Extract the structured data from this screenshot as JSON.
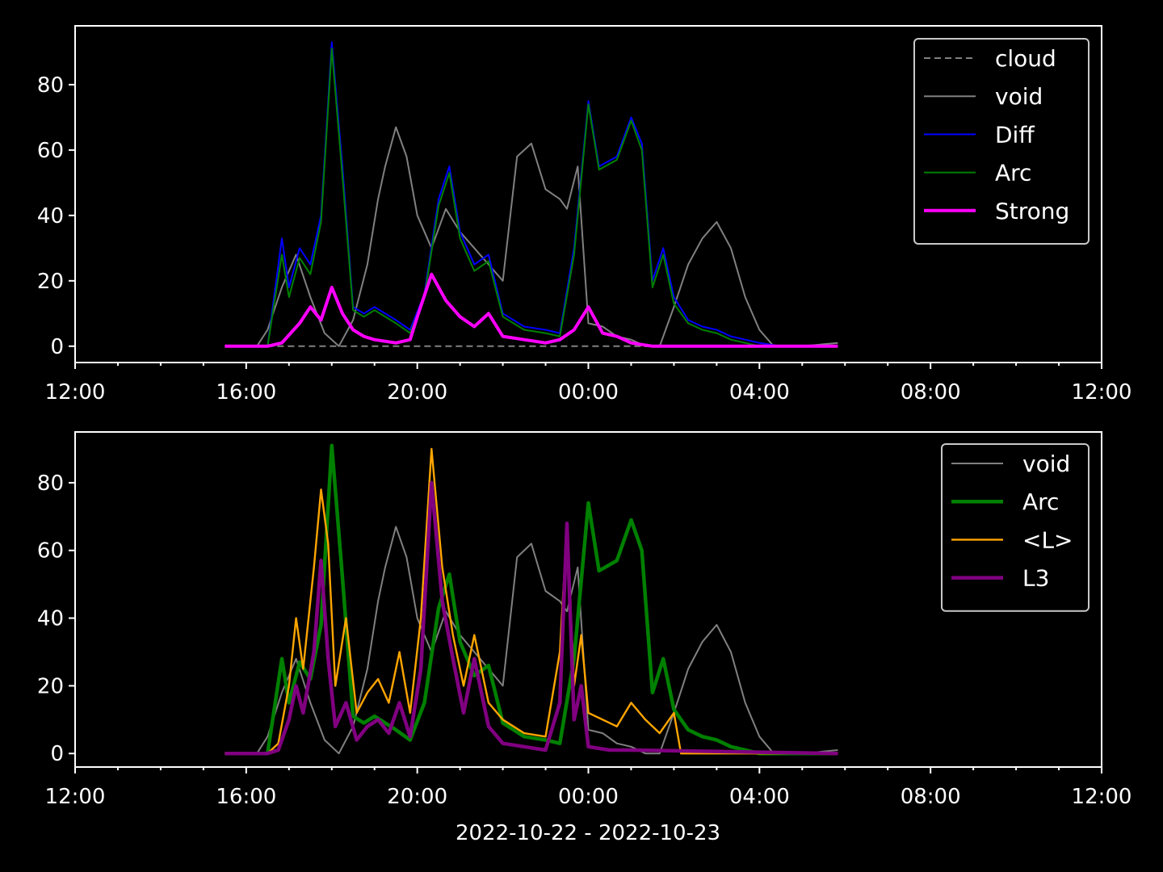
{
  "chart_data": [
    {
      "type": "line",
      "title": "",
      "xlabel": "",
      "ylabel": "",
      "xlim": [
        "2022-10-22 12:00",
        "2022-10-23 12:00"
      ],
      "ylim": [
        -5,
        98
      ],
      "xtick_labels": [
        "12:00",
        "16:00",
        "20:00",
        "00:00",
        "04:00",
        "08:00",
        "12:00"
      ],
      "ytick_labels": [
        "0",
        "20",
        "40",
        "60",
        "80"
      ],
      "grid": false,
      "legend_position": "top-right",
      "series": [
        {
          "name": "cloud",
          "color": "#808080",
          "style": "dashed",
          "x": [
            "2022-10-22 15:30",
            "2022-10-23 05:50"
          ],
          "values": [
            0,
            0
          ]
        },
        {
          "name": "void",
          "color": "#808080",
          "style": "solid",
          "x": [
            "2022-10-22 15:30",
            "2022-10-22 16:15",
            "2022-10-22 16:30",
            "2022-10-22 16:50",
            "2022-10-22 17:10",
            "2022-10-22 17:30",
            "2022-10-22 17:50",
            "2022-10-22 18:10",
            "2022-10-22 18:30",
            "2022-10-22 18:50",
            "2022-10-22 19:05",
            "2022-10-22 19:15",
            "2022-10-22 19:30",
            "2022-10-22 19:45",
            "2022-10-22 20:00",
            "2022-10-22 20:20",
            "2022-10-22 20:40",
            "2022-10-22 21:00",
            "2022-10-22 21:20",
            "2022-10-22 21:40",
            "2022-10-22 22:00",
            "2022-10-22 22:20",
            "2022-10-22 22:40",
            "2022-10-22 23:00",
            "2022-10-22 23:20",
            "2022-10-22 23:30",
            "2022-10-22 23:45",
            "2022-10-23 00:00",
            "2022-10-23 00:20",
            "2022-10-23 00:40",
            "2022-10-23 01:00",
            "2022-10-23 01:20",
            "2022-10-23 01:40",
            "2022-10-23 02:00",
            "2022-10-23 02:20",
            "2022-10-23 02:40",
            "2022-10-23 03:00",
            "2022-10-23 03:20",
            "2022-10-23 03:40",
            "2022-10-23 04:00",
            "2022-10-23 04:20",
            "2022-10-23 05:00",
            "2022-10-23 05:50"
          ],
          "values": [
            0,
            0,
            5,
            18,
            28,
            15,
            4,
            0,
            8,
            25,
            45,
            55,
            67,
            58,
            40,
            30,
            42,
            35,
            30,
            25,
            20,
            58,
            62,
            48,
            45,
            42,
            55,
            7,
            6,
            3,
            2,
            0,
            0,
            12,
            25,
            33,
            38,
            30,
            15,
            5,
            0,
            0,
            1
          ]
        },
        {
          "name": "Diff",
          "color": "#0000ff",
          "style": "solid",
          "x": [
            "2022-10-22 15:30",
            "2022-10-22 16:30",
            "2022-10-22 16:50",
            "2022-10-22 17:00",
            "2022-10-22 17:15",
            "2022-10-22 17:30",
            "2022-10-22 17:45",
            "2022-10-22 18:00",
            "2022-10-22 18:15",
            "2022-10-22 18:30",
            "2022-10-22 18:45",
            "2022-10-22 19:00",
            "2022-10-22 19:30",
            "2022-10-22 19:50",
            "2022-10-22 20:10",
            "2022-10-22 20:30",
            "2022-10-22 20:45",
            "2022-10-22 21:00",
            "2022-10-22 21:20",
            "2022-10-22 21:40",
            "2022-10-22 22:00",
            "2022-10-22 22:30",
            "2022-10-22 23:00",
            "2022-10-22 23:20",
            "2022-10-22 23:40",
            "2022-10-23 00:00",
            "2022-10-23 00:15",
            "2022-10-23 00:40",
            "2022-10-23 01:00",
            "2022-10-23 01:15",
            "2022-10-23 01:30",
            "2022-10-23 01:45",
            "2022-10-23 02:00",
            "2022-10-23 02:20",
            "2022-10-23 02:40",
            "2022-10-23 03:00",
            "2022-10-23 03:20",
            "2022-10-23 03:40",
            "2022-10-23 04:00",
            "2022-10-23 04:30",
            "2022-10-23 05:50"
          ],
          "values": [
            0,
            0,
            33,
            18,
            30,
            25,
            40,
            93,
            55,
            12,
            10,
            12,
            8,
            5,
            16,
            45,
            55,
            35,
            25,
            28,
            10,
            6,
            5,
            4,
            30,
            75,
            55,
            58,
            70,
            62,
            20,
            30,
            15,
            8,
            6,
            5,
            3,
            2,
            1,
            0,
            0
          ]
        },
        {
          "name": "Arc",
          "color": "#008000",
          "style": "solid",
          "x": [
            "2022-10-22 15:30",
            "2022-10-22 16:30",
            "2022-10-22 16:50",
            "2022-10-22 17:00",
            "2022-10-22 17:15",
            "2022-10-22 17:30",
            "2022-10-22 17:45",
            "2022-10-22 18:00",
            "2022-10-22 18:15",
            "2022-10-22 18:30",
            "2022-10-22 18:45",
            "2022-10-22 19:00",
            "2022-10-22 19:30",
            "2022-10-22 19:50",
            "2022-10-22 20:10",
            "2022-10-22 20:30",
            "2022-10-22 20:45",
            "2022-10-22 21:00",
            "2022-10-22 21:20",
            "2022-10-22 21:40",
            "2022-10-22 22:00",
            "2022-10-22 22:30",
            "2022-10-22 23:00",
            "2022-10-22 23:20",
            "2022-10-22 23:40",
            "2022-10-23 00:00",
            "2022-10-23 00:15",
            "2022-10-23 00:40",
            "2022-10-23 01:00",
            "2022-10-23 01:15",
            "2022-10-23 01:30",
            "2022-10-23 01:45",
            "2022-10-23 02:00",
            "2022-10-23 02:20",
            "2022-10-23 02:40",
            "2022-10-23 03:00",
            "2022-10-23 03:20",
            "2022-10-23 03:40",
            "2022-10-23 04:00",
            "2022-10-23 04:30",
            "2022-10-23 05:50"
          ],
          "values": [
            0,
            0,
            28,
            15,
            27,
            22,
            38,
            91,
            52,
            11,
            9,
            11,
            7,
            4,
            15,
            43,
            53,
            33,
            23,
            26,
            9,
            5,
            4,
            3,
            28,
            74,
            54,
            57,
            69,
            60,
            18,
            28,
            13,
            7,
            5,
            4,
            2,
            1,
            0,
            0,
            0
          ]
        },
        {
          "name": "Strong",
          "color": "#ff00ff",
          "style": "solid",
          "x": [
            "2022-10-22 15:30",
            "2022-10-22 16:30",
            "2022-10-22 16:50",
            "2022-10-22 17:15",
            "2022-10-22 17:30",
            "2022-10-22 17:45",
            "2022-10-22 18:00",
            "2022-10-22 18:15",
            "2022-10-22 18:30",
            "2022-10-22 18:45",
            "2022-10-22 19:00",
            "2022-10-22 19:30",
            "2022-10-22 19:50",
            "2022-10-22 20:00",
            "2022-10-22 20:20",
            "2022-10-22 20:40",
            "2022-10-22 21:00",
            "2022-10-22 21:20",
            "2022-10-22 21:40",
            "2022-10-22 22:00",
            "2022-10-22 22:30",
            "2022-10-22 23:00",
            "2022-10-22 23:20",
            "2022-10-22 23:40",
            "2022-10-23 00:00",
            "2022-10-23 00:20",
            "2022-10-23 00:40",
            "2022-10-23 01:00",
            "2022-10-23 01:30",
            "2022-10-23 02:00",
            "2022-10-23 05:50"
          ],
          "values": [
            0,
            0,
            1,
            7,
            12,
            8,
            18,
            10,
            5,
            3,
            2,
            1,
            2,
            9,
            22,
            14,
            9,
            6,
            10,
            3,
            2,
            1,
            2,
            5,
            12,
            4,
            3,
            1,
            0,
            0,
            0
          ]
        }
      ]
    },
    {
      "type": "line",
      "title": "",
      "xlabel": "2022-10-22 - 2022-10-23",
      "ylabel": "",
      "xlim": [
        "2022-10-22 12:00",
        "2022-10-23 12:00"
      ],
      "ylim": [
        -4,
        95
      ],
      "xtick_labels": [
        "12:00",
        "16:00",
        "20:00",
        "00:00",
        "04:00",
        "08:00",
        "12:00"
      ],
      "ytick_labels": [
        "0",
        "20",
        "40",
        "60",
        "80"
      ],
      "grid": false,
      "legend_position": "top-right",
      "series": [
        {
          "name": "void",
          "color": "#808080",
          "style": "solid",
          "x": [
            "2022-10-22 15:30",
            "2022-10-22 16:15",
            "2022-10-22 16:30",
            "2022-10-22 16:50",
            "2022-10-22 17:10",
            "2022-10-22 17:30",
            "2022-10-22 17:50",
            "2022-10-22 18:10",
            "2022-10-22 18:30",
            "2022-10-22 18:50",
            "2022-10-22 19:05",
            "2022-10-22 19:15",
            "2022-10-22 19:30",
            "2022-10-22 19:45",
            "2022-10-22 20:00",
            "2022-10-22 20:20",
            "2022-10-22 20:40",
            "2022-10-22 21:00",
            "2022-10-22 21:20",
            "2022-10-22 21:40",
            "2022-10-22 22:00",
            "2022-10-22 22:20",
            "2022-10-22 22:40",
            "2022-10-22 23:00",
            "2022-10-22 23:20",
            "2022-10-22 23:30",
            "2022-10-22 23:45",
            "2022-10-23 00:00",
            "2022-10-23 00:20",
            "2022-10-23 00:40",
            "2022-10-23 01:00",
            "2022-10-23 01:20",
            "2022-10-23 01:40",
            "2022-10-23 02:00",
            "2022-10-23 02:20",
            "2022-10-23 02:40",
            "2022-10-23 03:00",
            "2022-10-23 03:20",
            "2022-10-23 03:40",
            "2022-10-23 04:00",
            "2022-10-23 04:20",
            "2022-10-23 05:00",
            "2022-10-23 05:50"
          ],
          "values": [
            0,
            0,
            5,
            18,
            28,
            15,
            4,
            0,
            8,
            25,
            45,
            55,
            67,
            58,
            40,
            30,
            42,
            35,
            30,
            25,
            20,
            58,
            62,
            48,
            45,
            42,
            55,
            7,
            6,
            3,
            2,
            0,
            0,
            12,
            25,
            33,
            38,
            30,
            15,
            5,
            0,
            0,
            1
          ]
        },
        {
          "name": "Arc",
          "color": "#008000",
          "style": "solid",
          "x": [
            "2022-10-22 15:30",
            "2022-10-22 16:30",
            "2022-10-22 16:50",
            "2022-10-22 17:00",
            "2022-10-22 17:15",
            "2022-10-22 17:30",
            "2022-10-22 17:45",
            "2022-10-22 18:00",
            "2022-10-22 18:15",
            "2022-10-22 18:30",
            "2022-10-22 18:45",
            "2022-10-22 19:00",
            "2022-10-22 19:30",
            "2022-10-22 19:50",
            "2022-10-22 20:10",
            "2022-10-22 20:30",
            "2022-10-22 20:45",
            "2022-10-22 21:00",
            "2022-10-22 21:20",
            "2022-10-22 21:40",
            "2022-10-22 22:00",
            "2022-10-22 22:30",
            "2022-10-22 23:00",
            "2022-10-22 23:20",
            "2022-10-22 23:40",
            "2022-10-23 00:00",
            "2022-10-23 00:15",
            "2022-10-23 00:40",
            "2022-10-23 01:00",
            "2022-10-23 01:15",
            "2022-10-23 01:30",
            "2022-10-23 01:45",
            "2022-10-23 02:00",
            "2022-10-23 02:20",
            "2022-10-23 02:40",
            "2022-10-23 03:00",
            "2022-10-23 03:20",
            "2022-10-23 03:40",
            "2022-10-23 04:00",
            "2022-10-23 04:30",
            "2022-10-23 05:50"
          ],
          "values": [
            0,
            0,
            28,
            15,
            27,
            22,
            38,
            91,
            52,
            11,
            9,
            11,
            7,
            4,
            15,
            43,
            53,
            33,
            23,
            26,
            9,
            5,
            4,
            3,
            28,
            74,
            54,
            57,
            69,
            60,
            18,
            28,
            13,
            7,
            5,
            4,
            2,
            1,
            0,
            0,
            0
          ]
        },
        {
          "name": "<L>",
          "color": "#ffa500",
          "style": "solid",
          "x": [
            "2022-10-22 15:30",
            "2022-10-22 16:30",
            "2022-10-22 16:45",
            "2022-10-22 17:00",
            "2022-10-22 17:10",
            "2022-10-22 17:20",
            "2022-10-22 17:35",
            "2022-10-22 17:45",
            "2022-10-22 17:55",
            "2022-10-22 18:05",
            "2022-10-22 18:20",
            "2022-10-22 18:35",
            "2022-10-22 18:50",
            "2022-10-22 19:05",
            "2022-10-22 19:20",
            "2022-10-22 19:35",
            "2022-10-22 19:50",
            "2022-10-22 20:05",
            "2022-10-22 20:20",
            "2022-10-22 20:35",
            "2022-10-22 20:50",
            "2022-10-22 21:05",
            "2022-10-22 21:20",
            "2022-10-22 21:40",
            "2022-10-22 22:00",
            "2022-10-22 22:30",
            "2022-10-22 23:00",
            "2022-10-22 23:20",
            "2022-10-22 23:30",
            "2022-10-22 23:40",
            "2022-10-22 23:50",
            "2022-10-23 00:00",
            "2022-10-23 00:20",
            "2022-10-23 00:40",
            "2022-10-23 01:00",
            "2022-10-23 01:20",
            "2022-10-23 01:40",
            "2022-10-23 02:00",
            "2022-10-23 02:10",
            "2022-10-23 05:50"
          ],
          "values": [
            0,
            0,
            3,
            20,
            40,
            25,
            55,
            78,
            62,
            20,
            40,
            12,
            18,
            22,
            15,
            30,
            12,
            40,
            90,
            55,
            35,
            20,
            35,
            15,
            10,
            6,
            5,
            30,
            67,
            20,
            35,
            12,
            10,
            8,
            15,
            10,
            6,
            12,
            0,
            0
          ]
        },
        {
          "name": "L3",
          "color": "#800080",
          "style": "solid",
          "x": [
            "2022-10-22 15:30",
            "2022-10-22 16:30",
            "2022-10-22 16:45",
            "2022-10-22 17:00",
            "2022-10-22 17:10",
            "2022-10-22 17:20",
            "2022-10-22 17:35",
            "2022-10-22 17:45",
            "2022-10-22 17:55",
            "2022-10-22 18:05",
            "2022-10-22 18:20",
            "2022-10-22 18:35",
            "2022-10-22 18:50",
            "2022-10-22 19:05",
            "2022-10-22 19:20",
            "2022-10-22 19:35",
            "2022-10-22 19:50",
            "2022-10-22 20:05",
            "2022-10-22 20:20",
            "2022-10-22 20:35",
            "2022-10-22 20:50",
            "2022-10-22 21:05",
            "2022-10-22 21:20",
            "2022-10-22 21:40",
            "2022-10-22 22:00",
            "2022-10-22 22:30",
            "2022-10-22 23:00",
            "2022-10-22 23:20",
            "2022-10-22 23:30",
            "2022-10-22 23:40",
            "2022-10-22 23:50",
            "2022-10-23 00:00",
            "2022-10-23 00:30",
            "2022-10-23 01:00",
            "2022-10-23 05:50"
          ],
          "values": [
            0,
            0,
            1,
            10,
            20,
            12,
            30,
            57,
            28,
            8,
            15,
            4,
            8,
            10,
            6,
            15,
            5,
            25,
            80,
            45,
            28,
            12,
            28,
            8,
            3,
            2,
            1,
            15,
            68,
            10,
            20,
            2,
            1,
            1,
            0
          ]
        }
      ]
    }
  ]
}
